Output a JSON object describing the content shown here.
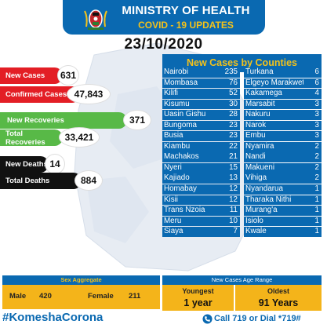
{
  "header": {
    "title": "MINISTRY OF HEALTH",
    "subtitle": "COVID - 19 UPDATES",
    "date": "23/10/2020"
  },
  "stats": [
    {
      "label": "New Cases",
      "value": "631",
      "color": "#e31e25"
    },
    {
      "label": "Confirmed Cases",
      "value": "47,843",
      "color": "#e31e25"
    },
    {
      "label": "New Recoveries",
      "value": "371",
      "color": "#58b947"
    },
    {
      "label": "Total Recoveries",
      "value": "33,421",
      "color": "#58b947"
    },
    {
      "label": "New Deaths",
      "value": "14",
      "color": "#111111"
    },
    {
      "label": "Total Deaths",
      "value": "884",
      "color": "#111111"
    }
  ],
  "counties": {
    "title": "New Cases by Counties",
    "left": [
      {
        "name": "Nairobi",
        "value": "235"
      },
      {
        "name": "Mombasa",
        "value": "76"
      },
      {
        "name": "Kilifi",
        "value": "52"
      },
      {
        "name": "Kisumu",
        "value": "30"
      },
      {
        "name": "Uasin Gishu",
        "value": "28"
      },
      {
        "name": "Bungoma",
        "value": "23"
      },
      {
        "name": "Busia",
        "value": "23"
      },
      {
        "name": "Kiambu",
        "value": "22"
      },
      {
        "name": "Machakos",
        "value": "21"
      },
      {
        "name": "Nyeri",
        "value": "15"
      },
      {
        "name": "Kajiado",
        "value": "13"
      },
      {
        "name": "Homabay",
        "value": "12"
      },
      {
        "name": "Kisii",
        "value": "12"
      },
      {
        "name": "Trans Nzoia",
        "value": "11"
      },
      {
        "name": "Meru",
        "value": "10"
      },
      {
        "name": "Siaya",
        "value": "7"
      }
    ],
    "right": [
      {
        "name": "Turkana",
        "value": "6"
      },
      {
        "name": "Elgeyo Marakwet",
        "value": "6"
      },
      {
        "name": "Kakamega",
        "value": "4"
      },
      {
        "name": "Marsabit",
        "value": "3"
      },
      {
        "name": "Nakuru",
        "value": "3"
      },
      {
        "name": "Narok",
        "value": "3"
      },
      {
        "name": "Embu",
        "value": "3"
      },
      {
        "name": "Nyamira",
        "value": "2"
      },
      {
        "name": "Nandi",
        "value": "2"
      },
      {
        "name": "Makueni",
        "value": "2"
      },
      {
        "name": "Vihiga",
        "value": "2"
      },
      {
        "name": "Nyandarua",
        "value": "1"
      },
      {
        "name": "Tharaka Nithi",
        "value": "1"
      },
      {
        "name": "Murang'a",
        "value": "1"
      },
      {
        "name": "Isiolo",
        "value": "1"
      },
      {
        "name": "Kwale",
        "value": "1"
      }
    ]
  },
  "sex": {
    "title": "Sex Aggregate",
    "male_label": "Male",
    "male_value": "420",
    "female_label": "Female",
    "female_value": "211"
  },
  "age": {
    "title": "New Cases Age Range",
    "youngest_label": "Youngest",
    "youngest_value": "1 year",
    "oldest_label": "Oldest",
    "oldest_value": "91 Years"
  },
  "footer": {
    "hashtag": "#KomeshaCorona",
    "call": "Call  719 or Dial *719#"
  },
  "colors": {
    "brand_blue": "#0a69b1",
    "accent_yellow": "#f4c21a",
    "panel_yellow": "#f4b41a"
  }
}
